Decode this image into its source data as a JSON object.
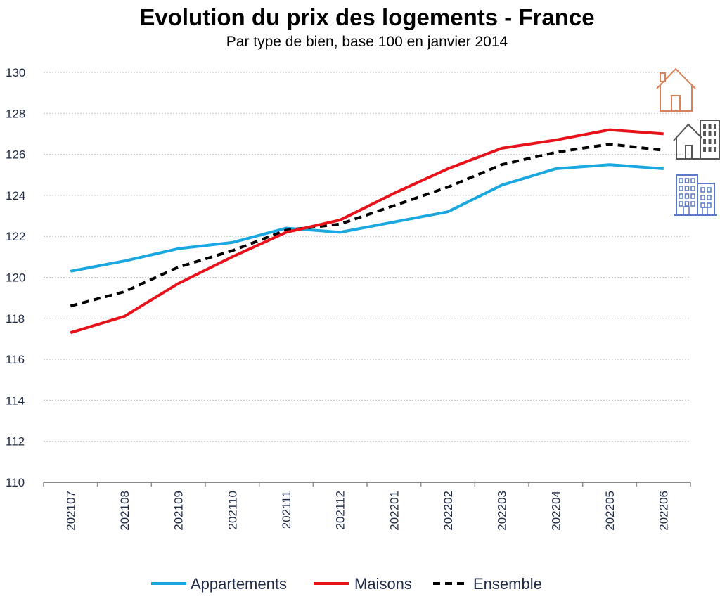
{
  "chart_data": {
    "type": "line",
    "title": "Evolution du prix des logements - France",
    "subtitle": "Par type de bien, base 100 en janvier 2014",
    "xlabel": "",
    "ylabel": "",
    "categories": [
      "202107",
      "202108",
      "202109",
      "202110",
      "202111",
      "202112",
      "202201",
      "202202",
      "202203",
      "202204",
      "202205",
      "202206"
    ],
    "ylim": [
      110,
      130
    ],
    "yticks": [
      110,
      112,
      114,
      116,
      118,
      120,
      122,
      124,
      126,
      128,
      130
    ],
    "grid": true,
    "legend_position": "bottom",
    "series": [
      {
        "name": "Appartements",
        "color": "#1aa7e0",
        "dash": "solid",
        "values": [
          120.3,
          120.8,
          121.4,
          121.7,
          122.4,
          122.2,
          122.7,
          123.2,
          124.5,
          125.3,
          125.5,
          125.3
        ]
      },
      {
        "name": "Maisons",
        "color": "#e8121b",
        "dash": "solid",
        "values": [
          117.3,
          118.1,
          119.7,
          121.0,
          122.2,
          122.8,
          124.1,
          125.3,
          126.3,
          126.7,
          127.2,
          127.0
        ]
      },
      {
        "name": "Ensemble",
        "color": "#000000",
        "dash": "dashed",
        "values": [
          118.6,
          119.3,
          120.5,
          121.3,
          122.3,
          122.6,
          123.5,
          124.4,
          125.5,
          126.1,
          126.5,
          126.2
        ]
      }
    ]
  },
  "icons": [
    {
      "name": "house-icon",
      "color": "#d9825b"
    },
    {
      "name": "mixed-buildings-icon",
      "color": "#555555"
    },
    {
      "name": "apartment-building-icon",
      "color": "#5b79c7"
    }
  ]
}
